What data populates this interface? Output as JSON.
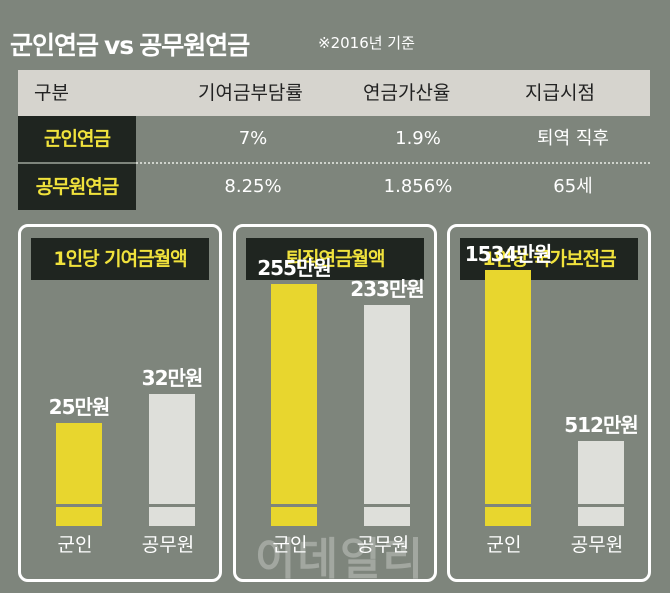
{
  "title": {
    "left": "군인연금",
    "vs": "vs",
    "right": "공무원연금"
  },
  "note": "※2016년 기준",
  "table": {
    "headers": [
      "구분",
      "기여금부담률",
      "연금가산율",
      "지급시점"
    ],
    "rows": [
      {
        "label": "군인연금",
        "cells": [
          "7%",
          "1.9%",
          "퇴역 직후"
        ]
      },
      {
        "label": "공무원연금",
        "cells": [
          "8.25%",
          "1.856%",
          "65세"
        ]
      }
    ]
  },
  "colors": {
    "military": "#e8d62e",
    "civil": "#dedfda",
    "background": "#7e857c",
    "label_bg": "#1f2520",
    "label_text": "#f0e23c"
  },
  "chart_data": [
    {
      "type": "bar",
      "title": "1인당 기여금월액",
      "categories": [
        "군인",
        "공무원"
      ],
      "values": [
        25,
        32
      ],
      "unit": "만원",
      "labels": [
        "25만원",
        "32만원"
      ]
    },
    {
      "type": "bar",
      "title": "퇴직연금월액",
      "categories": [
        "군인",
        "공무원"
      ],
      "values": [
        255,
        233
      ],
      "unit": "만원",
      "labels": [
        "255만원",
        "233만원"
      ]
    },
    {
      "type": "bar",
      "title": "1인당 국가보전금",
      "categories": [
        "군인",
        "공무원"
      ],
      "values": [
        1534,
        512
      ],
      "unit": "만원",
      "labels": [
        "1534만원",
        "512만원"
      ]
    }
  ],
  "watermark": "이데일리"
}
